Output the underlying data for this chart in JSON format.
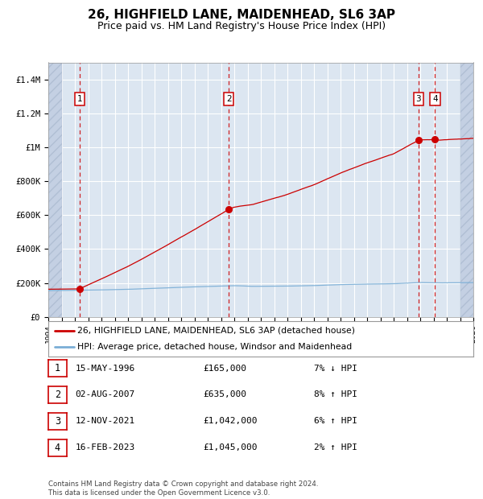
{
  "title": "26, HIGHFIELD LANE, MAIDENHEAD, SL6 3AP",
  "subtitle": "Price paid vs. HM Land Registry's House Price Index (HPI)",
  "ylim": [
    0,
    1500000
  ],
  "yticks": [
    0,
    200000,
    400000,
    600000,
    800000,
    1000000,
    1200000,
    1400000
  ],
  "ytick_labels": [
    "£0",
    "£200K",
    "£400K",
    "£600K",
    "£800K",
    "£1M",
    "£1.2M",
    "£1.4M"
  ],
  "x_start_year": 1994,
  "x_end_year": 2026,
  "sale_color": "#cc0000",
  "hpi_color": "#7aaed6",
  "plot_bg": "#dce6f1",
  "grid_color": "#ffffff",
  "vline_color": "#cc0000",
  "sale_dates_decimal": [
    1996.37,
    2007.58,
    2021.87,
    2023.12
  ],
  "sale_prices": [
    165000,
    635000,
    1042000,
    1045000
  ],
  "sale_labels": [
    "1",
    "2",
    "3",
    "4"
  ],
  "legend_line1": "26, HIGHFIELD LANE, MAIDENHEAD, SL6 3AP (detached house)",
  "legend_line2": "HPI: Average price, detached house, Windsor and Maidenhead",
  "table_entries": [
    {
      "num": "1",
      "date": "15-MAY-1996",
      "price": "£165,000",
      "hpi": "7% ↓ HPI"
    },
    {
      "num": "2",
      "date": "02-AUG-2007",
      "price": "£635,000",
      "hpi": "8% ↑ HPI"
    },
    {
      "num": "3",
      "date": "12-NOV-2021",
      "price": "£1,042,000",
      "hpi": "6% ↑ HPI"
    },
    {
      "num": "4",
      "date": "16-FEB-2023",
      "price": "£1,045,000",
      "hpi": "2% ↑ HPI"
    }
  ],
  "footnote": "Contains HM Land Registry data © Crown copyright and database right 2024.\nThis data is licensed under the Open Government Licence v3.0.",
  "title_fontsize": 11,
  "subtitle_fontsize": 9,
  "tick_fontsize": 7.5
}
